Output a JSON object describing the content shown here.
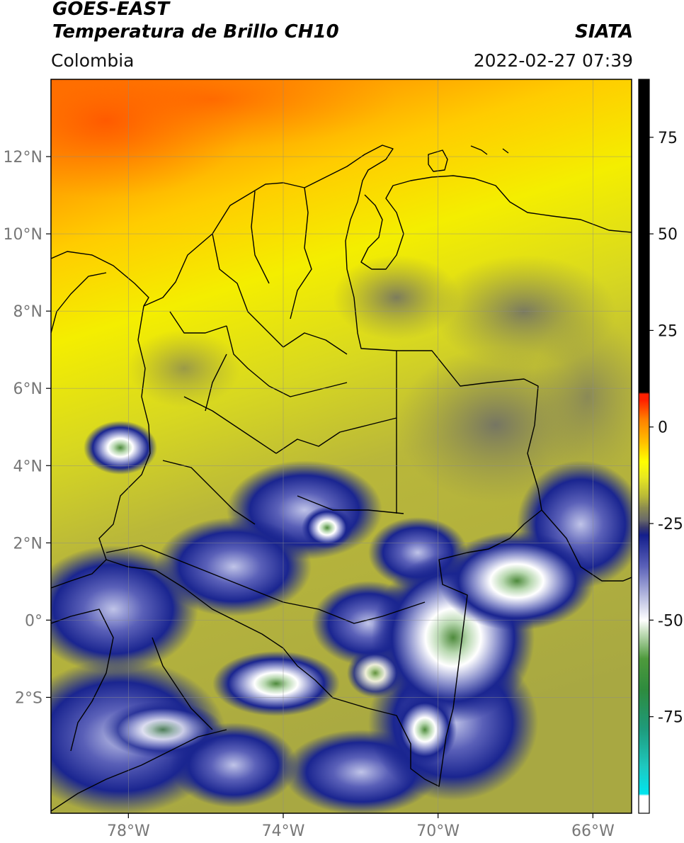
{
  "header": {
    "satellite": "GOES-EAST",
    "product": "Temperatura de Brillo CH10",
    "source": "SIATA",
    "region": "Colombia",
    "datetime": "2022-02-27 07:39"
  },
  "map": {
    "lon_range": [
      -80,
      -65
    ],
    "lat_range": [
      -5,
      14
    ],
    "x_ticks": [
      {
        "value": -78,
        "label": "78°W"
      },
      {
        "value": -74,
        "label": "74°W"
      },
      {
        "value": -70,
        "label": "70°W"
      },
      {
        "value": -66,
        "label": "66°W"
      }
    ],
    "y_ticks": [
      {
        "value": 12,
        "label": "12°N"
      },
      {
        "value": 10,
        "label": "10°N"
      },
      {
        "value": 8,
        "label": "8°N"
      },
      {
        "value": 6,
        "label": "6°N"
      },
      {
        "value": 4,
        "label": "4°N"
      },
      {
        "value": 2,
        "label": "2°N"
      },
      {
        "value": 0,
        "label": "0°"
      },
      {
        "value": -2,
        "label": "2°S"
      }
    ],
    "grid": true
  },
  "colorbar": {
    "range": [
      -100,
      90
    ],
    "ticks": [
      {
        "value": 75,
        "label": "75"
      },
      {
        "value": 50,
        "label": "50"
      },
      {
        "value": 25,
        "label": "25"
      },
      {
        "value": 0,
        "label": "0"
      },
      {
        "value": -25,
        "label": "-25"
      },
      {
        "value": -50,
        "label": "-50"
      },
      {
        "value": -75,
        "label": "-75"
      }
    ],
    "stops": [
      {
        "value": -100,
        "color": "#ffffff"
      },
      {
        "value": -95.5,
        "color": "#ffffff"
      },
      {
        "value": -95,
        "color": "#00e5ee"
      },
      {
        "value": -88,
        "color": "#1ec8c0"
      },
      {
        "value": -78,
        "color": "#1e9a7a"
      },
      {
        "value": -68,
        "color": "#2e8b3e"
      },
      {
        "value": -60,
        "color": "#4e9a3c"
      },
      {
        "value": -53,
        "color": "#c8e0c0"
      },
      {
        "value": -50,
        "color": "#ffffff"
      },
      {
        "value": -44,
        "color": "#b8bce0"
      },
      {
        "value": -36,
        "color": "#5a60b8"
      },
      {
        "value": -28,
        "color": "#131e8c"
      },
      {
        "value": -26,
        "color": "#3a3a6c"
      },
      {
        "value": -24,
        "color": "#6a6a6a"
      },
      {
        "value": -21,
        "color": "#8a8a50"
      },
      {
        "value": -18,
        "color": "#b8b838"
      },
      {
        "value": -13,
        "color": "#e8e820"
      },
      {
        "value": -9,
        "color": "#ffff00"
      },
      {
        "value": -4,
        "color": "#ffc000"
      },
      {
        "value": 2,
        "color": "#ff8000"
      },
      {
        "value": 7,
        "color": "#ff2000"
      },
      {
        "value": 8.5,
        "color": "#ff2000"
      },
      {
        "value": 9,
        "color": "#000000"
      },
      {
        "value": 90,
        "color": "#000000"
      }
    ]
  }
}
